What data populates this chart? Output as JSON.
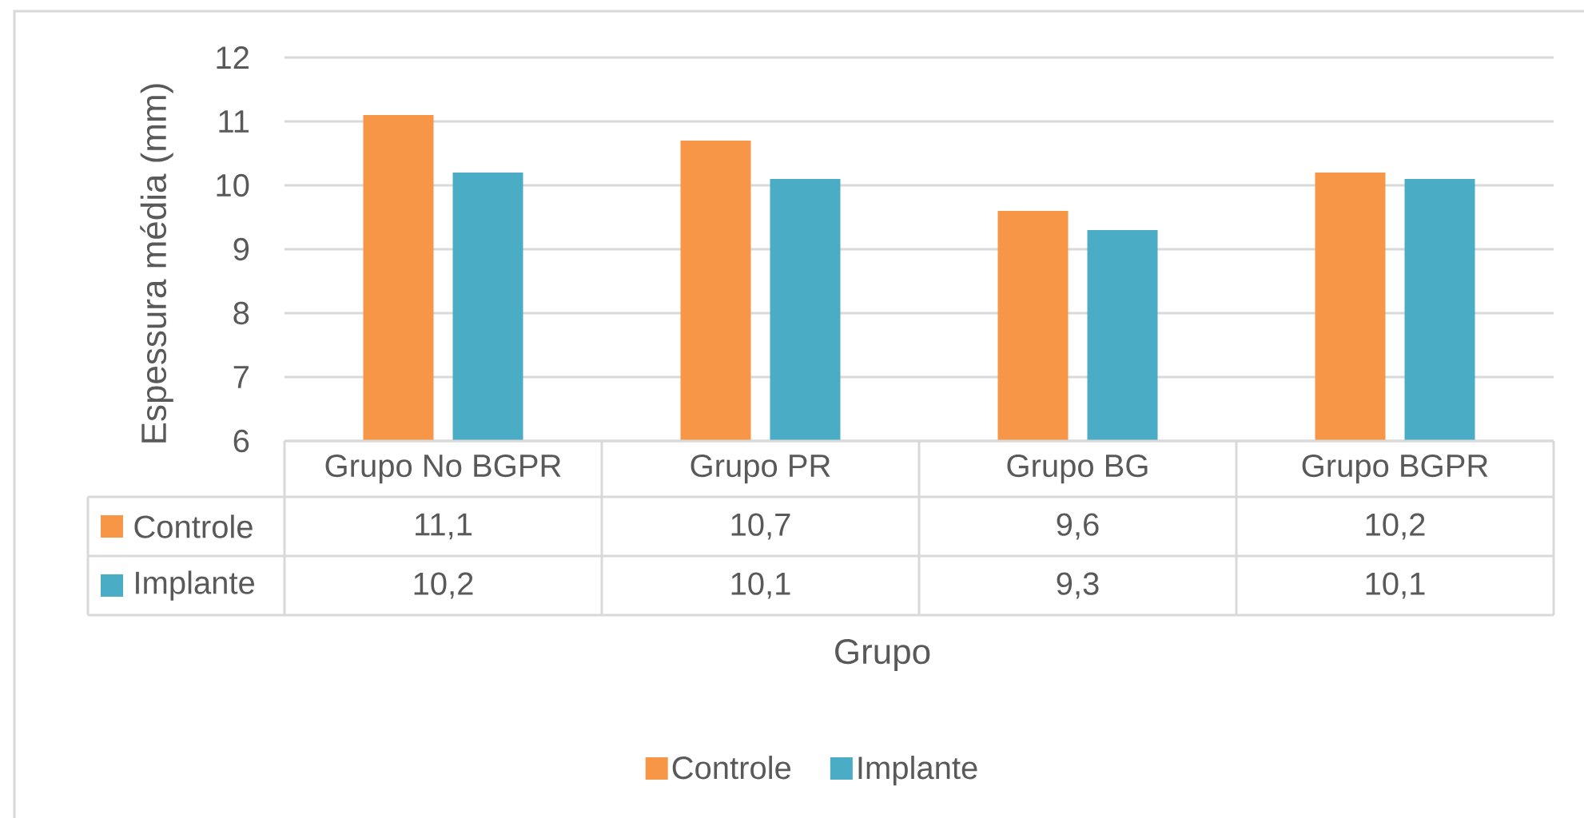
{
  "chart_data": {
    "type": "bar",
    "xlabel": "Grupo",
    "ylabel": "Espessura média (mm)",
    "categories": [
      "Grupo No BGPR",
      "Grupo PR",
      "Grupo BG",
      "Grupo BGPR"
    ],
    "series": [
      {
        "name": "Controle",
        "color": "#f79646",
        "values": [
          11.1,
          10.7,
          9.6,
          10.2
        ],
        "value_labels": [
          "11,1",
          "10,7",
          "9,6",
          "10,2"
        ]
      },
      {
        "name": "Implante",
        "color": "#4bacc6",
        "values": [
          10.2,
          10.1,
          9.3,
          10.1
        ],
        "value_labels": [
          "10,2",
          "10,1",
          "9,3",
          "10,1"
        ]
      }
    ],
    "ylim": [
      6,
      12
    ],
    "yticks": [
      6,
      7,
      8,
      9,
      10,
      11,
      12
    ],
    "grid": "y",
    "legend": "bottom"
  }
}
